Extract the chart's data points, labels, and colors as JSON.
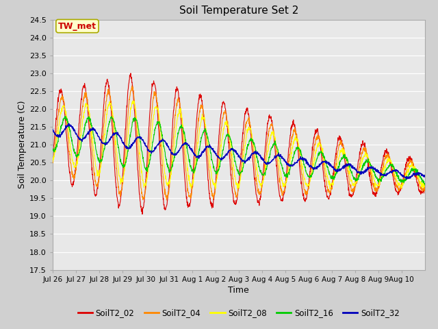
{
  "title": "Soil Temperature Set 2",
  "xlabel": "Time",
  "ylabel": "Soil Temperature (C)",
  "ylim": [
    17.5,
    24.5
  ],
  "series_names": [
    "SoilT2_02",
    "SoilT2_04",
    "SoilT2_08",
    "SoilT2_16",
    "SoilT2_32"
  ],
  "series_colors": [
    "#dd0000",
    "#ff8800",
    "#ffff00",
    "#00cc00",
    "#0000bb"
  ],
  "annotation_text": "TW_met",
  "annotation_bg": "#ffffcc",
  "annotation_fg": "#cc0000",
  "annotation_border": "#aaaa00",
  "fig_bg": "#d0d0d0",
  "plot_bg": "#e8e8e8",
  "n_days": 16,
  "x_tick_labels": [
    "Jul 26",
    "Jul 27",
    "Jul 28",
    "Jul 29",
    "Jul 30",
    "Jul 31",
    "Aug 1",
    "Aug 2",
    "Aug 3",
    "Aug 4",
    "Aug 5",
    "Aug 6",
    "Aug 7",
    "Aug 8",
    "Aug 9",
    "Aug 10"
  ],
  "yticks": [
    17.5,
    18.0,
    18.5,
    19.0,
    19.5,
    20.0,
    20.5,
    21.0,
    21.5,
    22.0,
    22.5,
    23.0,
    23.5,
    24.0,
    24.5
  ]
}
